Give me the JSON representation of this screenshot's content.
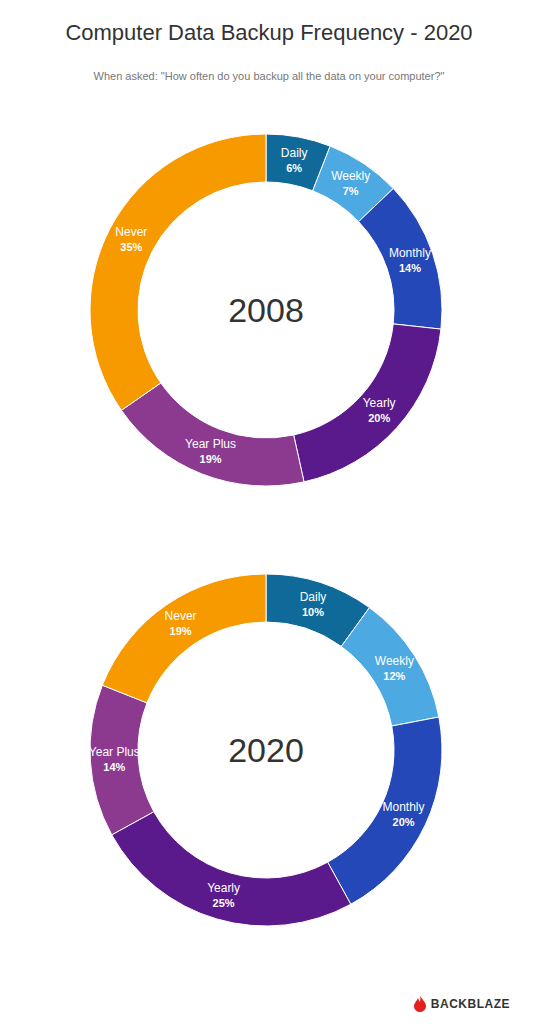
{
  "title": "Computer Data Backup Frequency - 2020",
  "subtitle": "When asked: \"How often do you backup all the data on your computer?\"",
  "source": "BACKBLAZE",
  "chart_data": [
    {
      "type": "pie",
      "title": "2008",
      "categories": [
        "Daily",
        "Weekly",
        "Monthly",
        "Yearly",
        "Year Plus",
        "Never"
      ],
      "values": [
        6,
        7,
        14,
        20,
        19,
        35
      ],
      "value_labels": [
        "6%",
        "7%",
        "14%",
        "20%",
        "19%",
        "35%"
      ],
      "colors": [
        "#0f6a9a",
        "#4da9e2",
        "#2448b8",
        "#5b1a8c",
        "#8b3a8f",
        "#f79a00"
      ],
      "data_labels": true
    },
    {
      "type": "pie",
      "title": "2020",
      "categories": [
        "Daily",
        "Weekly",
        "Monthly",
        "Yearly",
        "Year Plus",
        "Never"
      ],
      "values": [
        10,
        12,
        20,
        25,
        14,
        19
      ],
      "value_labels": [
        "10%",
        "12%",
        "20%",
        "25%",
        "14%",
        "19%"
      ],
      "colors": [
        "#0f6a9a",
        "#4da9e2",
        "#2448b8",
        "#5b1a8c",
        "#8b3a8f",
        "#f79a00"
      ],
      "data_labels": true
    }
  ]
}
